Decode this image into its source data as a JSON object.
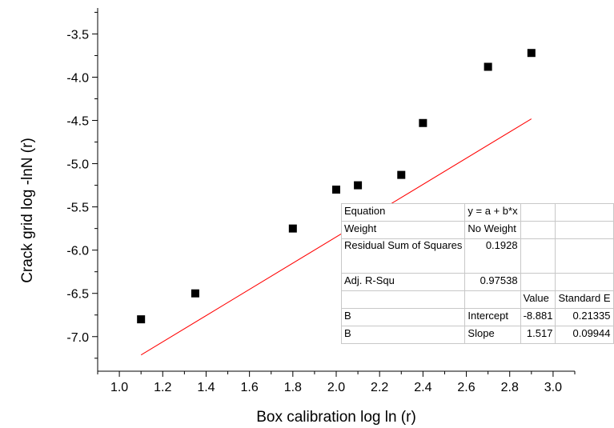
{
  "chart_data": {
    "type": "scatter",
    "xlabel": "Box calibration log ln (r)",
    "ylabel": "Crack grid log -lnN (r)",
    "xlim": [
      0.9,
      3.1
    ],
    "ylim": [
      -7.4,
      -3.2
    ],
    "x_ticks": [
      "1.0",
      "1.2",
      "1.4",
      "1.6",
      "1.8",
      "2.0",
      "2.2",
      "2.4",
      "2.6",
      "2.8",
      "3.0"
    ],
    "y_ticks": [
      "-3.5",
      "-4.0",
      "-4.5",
      "-5.0",
      "-5.5",
      "-6.0",
      "-6.5",
      "-7.0"
    ],
    "series": [
      {
        "marker": "square",
        "color": "#000000",
        "points": [
          {
            "x": 1.1,
            "y": -6.8
          },
          {
            "x": 1.35,
            "y": -6.5
          },
          {
            "x": 1.8,
            "y": -5.75
          },
          {
            "x": 2.0,
            "y": -5.3
          },
          {
            "x": 2.1,
            "y": -5.25
          },
          {
            "x": 2.3,
            "y": -5.13
          },
          {
            "x": 2.4,
            "y": -4.53
          },
          {
            "x": 2.7,
            "y": -3.88
          },
          {
            "x": 2.9,
            "y": -3.72
          }
        ]
      }
    ],
    "fit_line": {
      "color": "#ff0000",
      "intercept": -8.881,
      "slope": 1.517,
      "x_range": [
        1.1,
        2.9
      ]
    },
    "fit_table": {
      "rows": [
        [
          "Equation",
          "y = a + b*x",
          "",
          ""
        ],
        [
          "Weight",
          "No Weight",
          "",
          ""
        ],
        [
          "Residual Sum of Squares",
          "0.1928",
          "",
          ""
        ],
        [
          "Adj. R-Squ",
          "0.97538",
          "",
          ""
        ],
        [
          "",
          "",
          "Value",
          "Standard E"
        ],
        [
          "B",
          "Intercept",
          "-8.881",
          "0.21335"
        ],
        [
          "B",
          "Slope",
          "1.517",
          "0.09944"
        ]
      ]
    }
  }
}
